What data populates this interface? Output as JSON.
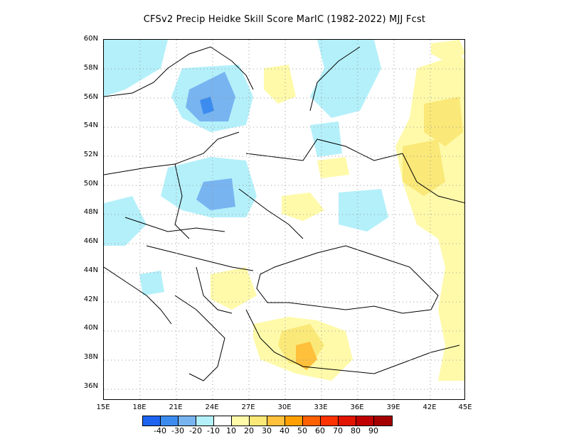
{
  "title": "CFSv2 Precip Heidke Skill Score MarIC (1982-2022) MJJ Fcst",
  "map": {
    "lat_labels": [
      "60N",
      "58N",
      "56N",
      "54N",
      "52N",
      "50N",
      "48N",
      "46N",
      "44N",
      "42N",
      "40N",
      "38N",
      "36N"
    ],
    "lon_labels": [
      "15E",
      "18E",
      "21E",
      "24E",
      "27E",
      "30E",
      "33E",
      "36E",
      "39E",
      "42E",
      "45E"
    ]
  },
  "colorbar": {
    "colors": [
      "#1e64f0",
      "#3c8cf0",
      "#78b4f0",
      "#b4f0fa",
      "#ffffff",
      "#fffaaa",
      "#fae878",
      "#ffc03c",
      "#ffa000",
      "#ff6000",
      "#ff3200",
      "#e11400",
      "#c00000",
      "#a50000"
    ],
    "labels": [
      "-40",
      "-30",
      "-20",
      "-10",
      "10",
      "20",
      "30",
      "40",
      "50",
      "60",
      "70",
      "80",
      "90"
    ]
  }
}
